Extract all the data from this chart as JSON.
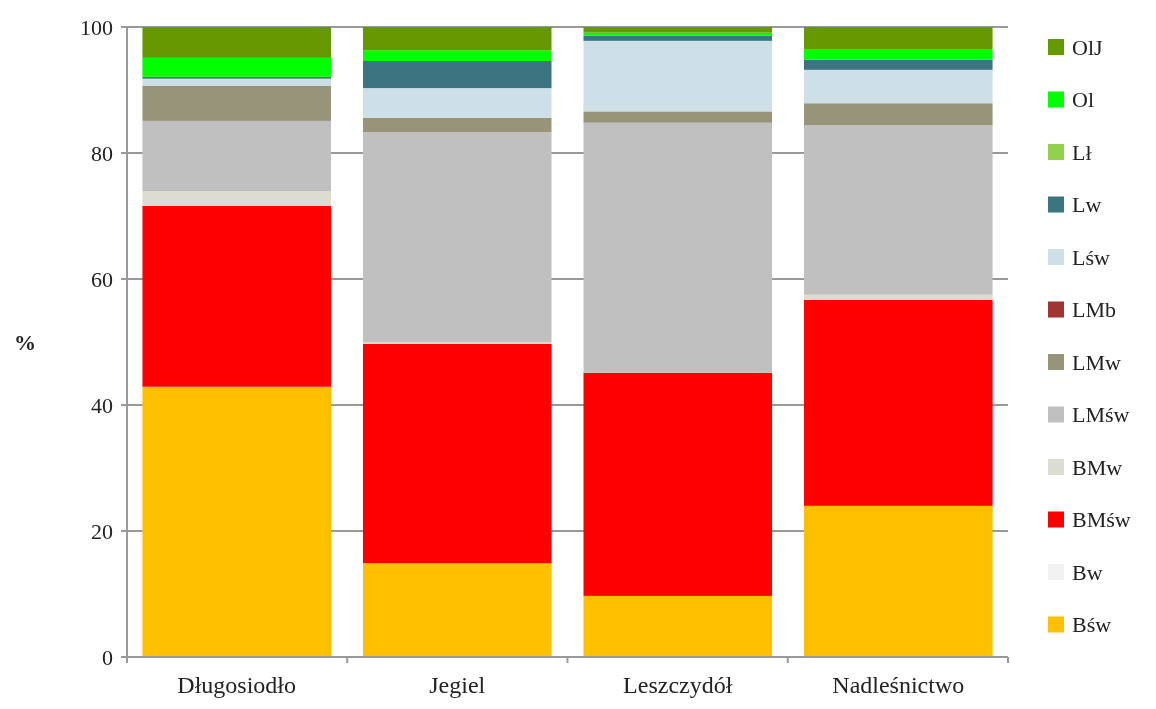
{
  "chart_data": {
    "type": "bar",
    "stacked": true,
    "ylabel": "%",
    "categories": [
      "Długosiodło",
      "Jegiel",
      "Leszczydół",
      "Nadleśnictwo"
    ],
    "ylim": [
      0,
      100
    ],
    "yticks": [
      0,
      20,
      40,
      60,
      80,
      100
    ],
    "grid": "y",
    "legend": "right",
    "series": [
      {
        "name": "Bśw",
        "color": "#ffc000",
        "values": [
          42.9,
          14.9,
          9.7,
          24.0
        ]
      },
      {
        "name": "Bw",
        "color": "#f2f2f2",
        "values": [
          0,
          0,
          0,
          0
        ]
      },
      {
        "name": "BMśw",
        "color": "#ff0000",
        "values": [
          28.7,
          34.8,
          35.4,
          32.7
        ]
      },
      {
        "name": "BMw",
        "color": "#dcdcd0",
        "values": [
          2.3,
          0.3,
          0,
          0.8
        ]
      },
      {
        "name": "LMśw",
        "color": "#c0c0c0",
        "values": [
          11.2,
          33.3,
          39.7,
          26.9
        ]
      },
      {
        "name": "LMw",
        "color": "#989479",
        "values": [
          5.6,
          2.3,
          1.8,
          3.5
        ]
      },
      {
        "name": "LMb",
        "color": "#a33333",
        "values": [
          0,
          0,
          0,
          0
        ]
      },
      {
        "name": "Lśw",
        "color": "#cde0e8",
        "values": [
          1.1,
          4.7,
          11.2,
          5.3
        ]
      },
      {
        "name": "Lw",
        "color": "#3c7482",
        "values": [
          0.3,
          4.3,
          0.8,
          1.6
        ]
      },
      {
        "name": "Lł",
        "color": "#92d050",
        "values": [
          0,
          0,
          0,
          0
        ]
      },
      {
        "name": "Ol",
        "color": "#00ff00",
        "values": [
          3.0,
          1.7,
          0.5,
          1.7
        ]
      },
      {
        "name": "OlJ",
        "color": "#669900",
        "values": [
          4.9,
          3.7,
          0.9,
          3.5
        ]
      }
    ]
  }
}
